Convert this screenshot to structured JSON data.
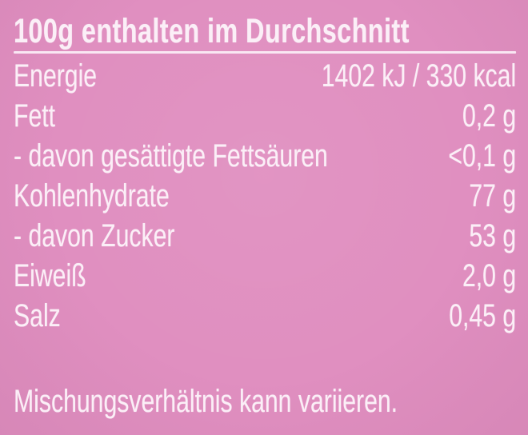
{
  "colors": {
    "background": "#e08fc0",
    "text": "#fbeff7"
  },
  "header": {
    "title": "100g enthalten im Durchschnitt"
  },
  "nutrition": {
    "rows": [
      {
        "label": "Energie",
        "value": "1402 kJ / 330 kcal"
      },
      {
        "label": "Fett",
        "value": "0,2 g"
      },
      {
        "label": "- davon gesättigte Fettsäuren",
        "value": "<0,1 g"
      },
      {
        "label": "Kohlenhydrate",
        "value": "77 g"
      },
      {
        "label": "- davon Zucker",
        "value": "53 g"
      },
      {
        "label": "Eiweiß",
        "value": "2,0 g"
      },
      {
        "label": "Salz",
        "value": "0,45 g"
      }
    ]
  },
  "footer": {
    "note": "Mischungsverhältnis kann variieren."
  }
}
